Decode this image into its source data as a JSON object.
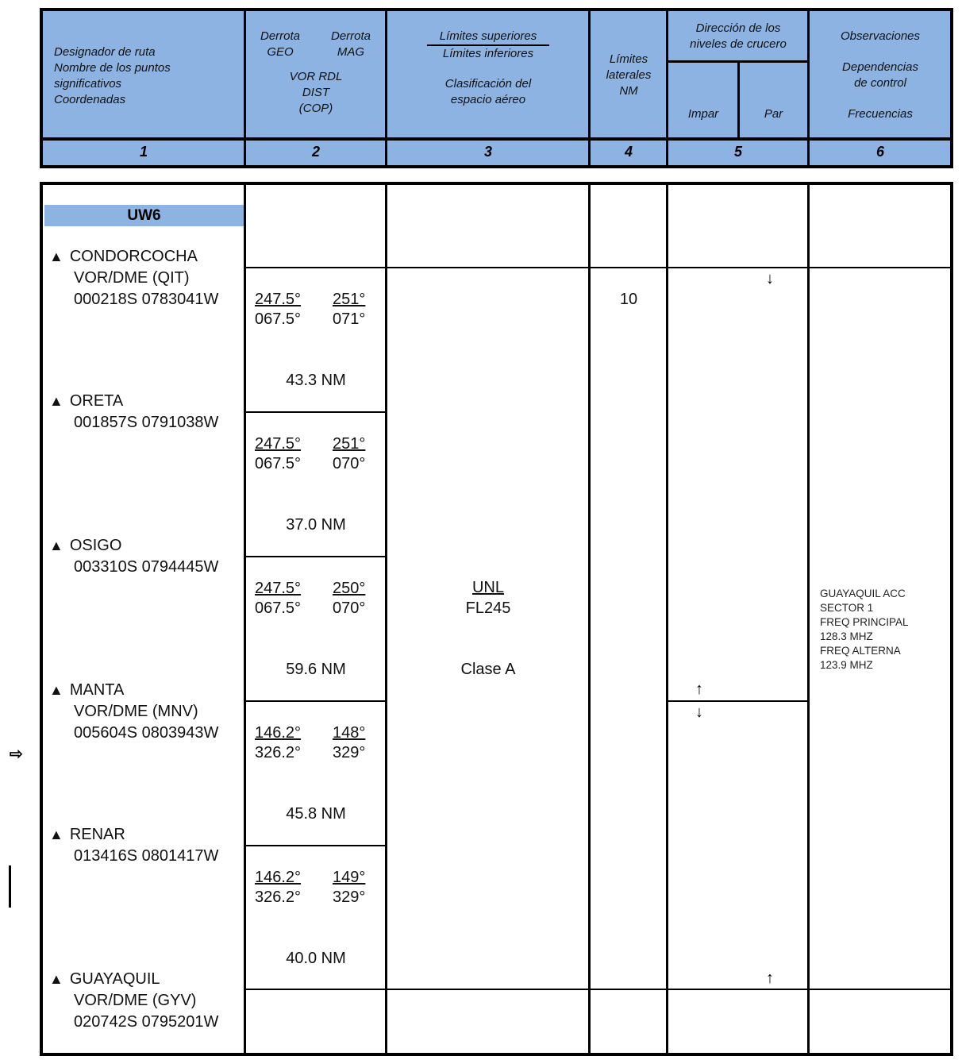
{
  "header": {
    "col1": [
      "Designador de ruta",
      "Nombre de los puntos",
      "significativos",
      "Coordenadas"
    ],
    "col2": {
      "geo": "Derrota",
      "geo2": "GEO",
      "mag": "Derrota",
      "mag2": "MAG",
      "vor": "VOR RDL",
      "dist": "DIST",
      "cop": "(COP)"
    },
    "col3": {
      "upper": "Límites superiores",
      "lower": "Límites inferiores",
      "class1": "Clasificación del",
      "class2": "espacio aéreo"
    },
    "col4": [
      "Límites",
      "laterales",
      "NM"
    ],
    "col5": {
      "title1": "Dirección de los",
      "title2": "niveles de crucero",
      "odd": "Impar",
      "even": "Par"
    },
    "col6": {
      "obs": "Observaciones",
      "dep1": "Dependencias",
      "dep2": "de control",
      "freq": "Frecuencias"
    },
    "numbers": [
      "1",
      "2",
      "3",
      "4",
      "5",
      "6"
    ]
  },
  "route": {
    "designator": "UW6",
    "points": [
      {
        "lines": [
          "CONDORCOCHA",
          "VOR/DME (QIT)",
          "000218S 0783041W"
        ]
      },
      {
        "lines": [
          "ORETA",
          "001857S 0791038W"
        ]
      },
      {
        "lines": [
          "OSIGO",
          "003310S 0794445W"
        ]
      },
      {
        "lines": [
          "MANTA",
          "VOR/DME (MNV)",
          "005604S 0803943W"
        ]
      },
      {
        "lines": [
          "RENAR",
          "013416S 0801417W"
        ]
      },
      {
        "lines": [
          "GUAYAQUIL",
          "VOR/DME (GYV)",
          "020742S 0795201W"
        ]
      }
    ],
    "segments": [
      {
        "geo": "247.5°",
        "geo_rev": "067.5°",
        "mag": "251°",
        "mag_rev": "071°",
        "dist": "43.3 NM"
      },
      {
        "geo": "247.5°",
        "geo_rev": "067.5°",
        "mag": "251°",
        "mag_rev": "070°",
        "dist": "37.0 NM"
      },
      {
        "geo": "247.5°",
        "geo_rev": "067.5°",
        "mag": "250°",
        "mag_rev": "070°",
        "dist": "59.6 NM"
      },
      {
        "geo": "146.2°",
        "geo_rev": "326.2°",
        "mag": "148°",
        "mag_rev": "329°",
        "dist": "45.8 NM"
      },
      {
        "geo": "146.2°",
        "geo_rev": "326.2°",
        "mag": "149°",
        "mag_rev": "329°",
        "dist": "40.0 NM"
      }
    ],
    "upper_limit": "UNL",
    "lower_limit": "FL245",
    "airspace_class": "Clase A",
    "lateral_limits": "10",
    "arrows": {
      "par_down": "↓",
      "impar_up": "↑",
      "impar_down": "↓",
      "par_up": "↑"
    },
    "remarks": [
      "GUAYAQUIL ACC",
      "SECTOR 1",
      "FREQ PRINCIPAL",
      "128.3 MHZ",
      "FREQ ALTERNA",
      "123.9 MHZ"
    ]
  },
  "margin": {
    "arrow": "⇨"
  },
  "colors": {
    "header_bg": "#8db3e2",
    "border": "#000000"
  }
}
